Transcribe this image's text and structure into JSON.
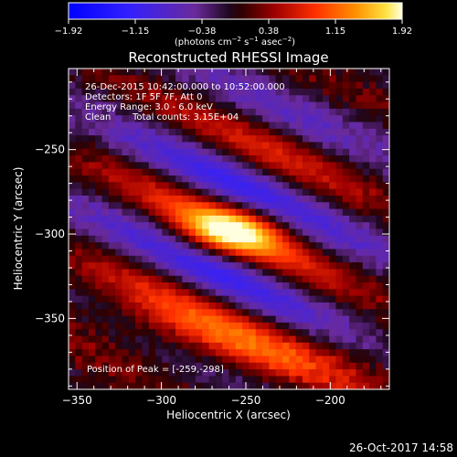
{
  "chart_data": {
    "type": "heatmap",
    "title": "Reconstructed RHESSI Image",
    "xlabel": "Heliocentric X (arcsec)",
    "ylabel": "Heliocentric Y (arcsec)",
    "xlim": [
      -355,
      -165
    ],
    "ylim": [
      -392,
      -202
    ],
    "x_ticks": [
      -350,
      -300,
      -250,
      -200
    ],
    "y_ticks": [
      -250,
      -300,
      -350
    ],
    "x_tick_labels": [
      "−350",
      "−300",
      "−250",
      "−200"
    ],
    "y_tick_labels": [
      "−250",
      "−300",
      "−350"
    ],
    "colorbar": {
      "min": -1.92,
      "max": 1.92,
      "ticks": [
        "−1.92",
        "−1.15",
        "−0.38",
        "0.38",
        "1.15",
        "1.92"
      ],
      "label_prefix": "(photons cm",
      "label_sup1": "−2",
      "label_mid1": " s",
      "label_sup2": "−1",
      "label_mid2": " asec",
      "label_sup3": "−2",
      "label_suffix": ")"
    },
    "annotations": {
      "time_range": "26-Dec-2015 10:42:00.000 to 10:52:00.000",
      "detectors": "Detectors: 1F 5F 7F, Att 0",
      "energy": "Energy Range: 3.0 - 6.0 keV",
      "method": "Clean",
      "counts": "Total counts: 3.15E+04",
      "peak": "Position of Peak = [-259,-298]"
    },
    "peak": [
      -259,
      -298
    ]
  },
  "footer": {
    "timestamp": "26-Oct-2017 14:58"
  }
}
